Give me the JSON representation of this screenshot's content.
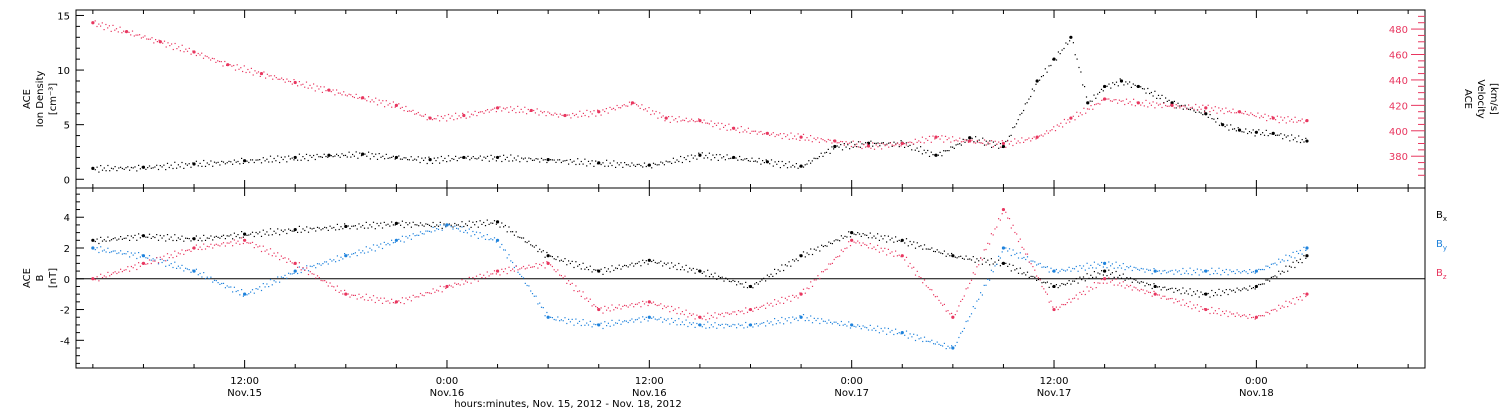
{
  "chart_data": [
    {
      "type": "scatter",
      "panel": "top",
      "ylabel_left": [
        "ACE",
        "Ion Density",
        "[cm⁻³]"
      ],
      "ylabel_right": [
        "ACE",
        "Velocity",
        "[km/s]"
      ],
      "ylim_left": [
        -0.8,
        15.5
      ],
      "ylim_right": [
        355,
        495
      ],
      "yticks_left": [
        "0",
        "5",
        "10",
        "15"
      ],
      "yticks_right": [
        "380",
        "400",
        "420",
        "440",
        "460",
        "480"
      ],
      "colors": {
        "density": "#000000",
        "velocity": "#e8365f"
      },
      "series": [
        {
          "name": "density",
          "axis": "left",
          "x_hours": [
            0,
            3,
            6,
            9,
            12,
            14,
            16,
            18,
            20,
            22,
            24,
            27,
            30,
            33,
            36,
            38,
            40,
            42,
            44,
            46,
            48,
            50,
            52,
            54,
            56,
            57,
            58,
            59,
            60,
            61,
            62,
            64,
            66,
            67,
            68,
            69,
            70,
            72
          ],
          "values": [
            1.0,
            1.1,
            1.4,
            1.7,
            2.0,
            2.2,
            2.3,
            2.0,
            1.8,
            2.0,
            2.0,
            1.8,
            1.5,
            1.3,
            2.2,
            2.0,
            1.6,
            1.2,
            3.0,
            3.3,
            3.3,
            2.2,
            3.8,
            3.0,
            9.0,
            11.0,
            13.0,
            7.0,
            8.5,
            9.0,
            8.5,
            7.0,
            6.0,
            5.0,
            4.5,
            4.3,
            4.2,
            3.5
          ]
        },
        {
          "name": "velocity",
          "axis": "right",
          "x_hours": [
            0,
            2,
            4,
            6,
            8,
            10,
            12,
            14,
            16,
            18,
            20,
            22,
            24,
            26,
            28,
            30,
            32,
            34,
            36,
            38,
            40,
            42,
            44,
            46,
            48,
            50,
            52,
            54,
            56,
            58,
            60,
            62,
            64,
            66,
            68,
            70,
            72
          ],
          "values": [
            485,
            478,
            470,
            462,
            452,
            445,
            438,
            432,
            426,
            420,
            410,
            412,
            418,
            416,
            412,
            415,
            422,
            410,
            408,
            402,
            398,
            395,
            392,
            388,
            390,
            395,
            392,
            390,
            395,
            410,
            425,
            422,
            420,
            418,
            415,
            410,
            408
          ]
        }
      ]
    },
    {
      "type": "scatter",
      "panel": "bottom",
      "ylabel": [
        "ACE",
        "B",
        "[nT]"
      ],
      "ylim": [
        -5.8,
        5.9
      ],
      "yticks": [
        "-4",
        "-2",
        "0",
        "2",
        "4"
      ],
      "zero_line": true,
      "colors": {
        "Bx": "#000000",
        "By": "#1e82dc",
        "Bz": "#e8365f"
      },
      "legend": [
        {
          "label": "B",
          "sub": "x",
          "key": "Bx"
        },
        {
          "label": "B",
          "sub": "y",
          "key": "By"
        },
        {
          "label": "B",
          "sub": "z",
          "key": "Bz"
        }
      ],
      "series": [
        {
          "name": "Bx",
          "x_hours": [
            0,
            3,
            6,
            9,
            12,
            15,
            18,
            21,
            24,
            27,
            30,
            33,
            36,
            39,
            42,
            45,
            48,
            51,
            54,
            57,
            60,
            63,
            66,
            69,
            72
          ],
          "values": [
            2.5,
            2.8,
            2.6,
            2.9,
            3.2,
            3.4,
            3.6,
            3.5,
            3.7,
            1.5,
            0.5,
            1.2,
            0.5,
            -0.5,
            1.5,
            3.0,
            2.5,
            1.5,
            1.0,
            -0.5,
            0.5,
            -0.5,
            -1.0,
            -0.5,
            1.5
          ]
        },
        {
          "name": "By",
          "x_hours": [
            0,
            3,
            6,
            9,
            12,
            15,
            18,
            21,
            24,
            27,
            30,
            33,
            36,
            39,
            42,
            45,
            48,
            51,
            54,
            57,
            60,
            63,
            66,
            69,
            72
          ],
          "values": [
            2.0,
            1.5,
            0.5,
            -1.0,
            0.5,
            1.5,
            2.5,
            3.5,
            2.5,
            -2.5,
            -3.0,
            -2.5,
            -3.0,
            -3.0,
            -2.5,
            -3.0,
            -3.5,
            -4.5,
            2.0,
            0.5,
            1.0,
            0.5,
            0.5,
            0.5,
            2.0
          ]
        },
        {
          "name": "Bz",
          "x_hours": [
            0,
            3,
            6,
            9,
            12,
            15,
            18,
            21,
            24,
            27,
            30,
            33,
            36,
            39,
            42,
            45,
            48,
            51,
            54,
            57,
            60,
            63,
            66,
            69,
            72
          ],
          "values": [
            0.0,
            1.0,
            2.0,
            2.5,
            1.0,
            -1.0,
            -1.5,
            -0.5,
            0.5,
            1.0,
            -2.0,
            -1.5,
            -2.5,
            -2.0,
            -1.0,
            2.5,
            1.5,
            -2.5,
            4.5,
            -2.0,
            0.0,
            -1.0,
            -2.0,
            -2.5,
            -1.0
          ]
        }
      ]
    }
  ],
  "x_axis": {
    "xlim_hours": [
      -1,
      79
    ],
    "ticks": [
      {
        "hours": 9,
        "time": "12:00",
        "date": "Nov.15"
      },
      {
        "hours": 21,
        "time": "0:00",
        "date": "Nov.16"
      },
      {
        "hours": 33,
        "time": "12:00",
        "date": "Nov.16"
      },
      {
        "hours": 45,
        "time": "0:00",
        "date": "Nov.17"
      },
      {
        "hours": 57,
        "time": "12:00",
        "date": "Nov.17"
      },
      {
        "hours": 69,
        "time": "0:00",
        "date": "Nov.18"
      }
    ],
    "label": "hours:minutes, Nov. 15, 2012 - Nov. 18, 2012"
  }
}
